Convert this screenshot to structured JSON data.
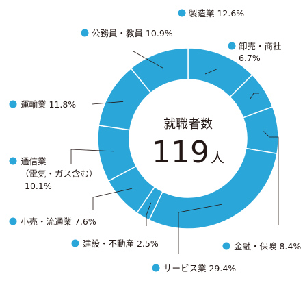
{
  "chart_data": {
    "type": "pie",
    "style": "donut",
    "center_title": "就職者数",
    "center_value": "119",
    "center_unit": "人",
    "color": "#2ba6d9",
    "slices": [
      {
        "label": "製造業",
        "value": 12.6,
        "value_text": "12.6%"
      },
      {
        "label": "卸売・商社",
        "value": 6.7,
        "value_text": "6.7%"
      },
      {
        "label": "金融・保険",
        "value": 8.4,
        "value_text": "8.4%"
      },
      {
        "label": "サービス業",
        "value": 29.4,
        "value_text": "29.4%"
      },
      {
        "label": "建設・不動産",
        "value": 2.5,
        "value_text": "2.5%"
      },
      {
        "label": "小売・流通業",
        "value": 7.6,
        "value_text": "7.6%"
      },
      {
        "label": "通信業",
        "label_line2": "（電気・ガス含む）",
        "value": 10.1,
        "value_text": "10.1%"
      },
      {
        "label": "運輸業",
        "value": 11.8,
        "value_text": "11.8%"
      },
      {
        "label": "公務員・教員",
        "value": 10.9,
        "value_text": "10.9%"
      }
    ]
  }
}
